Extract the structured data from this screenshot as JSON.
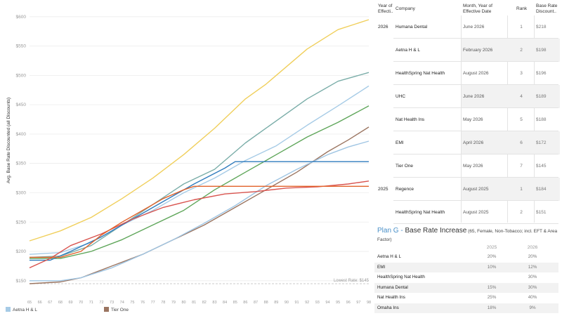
{
  "chart_data": {
    "type": "line",
    "ylabel": "Avg. Base Rate Discounted (all Discounts)",
    "x": [
      65,
      66,
      67,
      68,
      69,
      70,
      71,
      72,
      73,
      74,
      75,
      76,
      77,
      78,
      79,
      80,
      81,
      82,
      83,
      84,
      85,
      86,
      87,
      88,
      89,
      90,
      91,
      92,
      93,
      94,
      95,
      96,
      97,
      98
    ],
    "ylim": [
      140,
      610
    ],
    "yticks": [
      "$150",
      "$200",
      "$250",
      "$300",
      "$350",
      "$400",
      "$450",
      "$500",
      "$550",
      "$600"
    ],
    "ytick_values": [
      150,
      200,
      250,
      300,
      350,
      400,
      450,
      500,
      550,
      600
    ],
    "grid": true,
    "reference_line": {
      "value": 145,
      "label": "Lowest Rate: $145"
    },
    "series": [
      {
        "name": "Yellow",
        "color": "#f0cf5b",
        "points": [
          [
            65,
            218
          ],
          [
            68,
            235
          ],
          [
            71,
            258
          ],
          [
            74,
            290
          ],
          [
            77,
            325
          ],
          [
            80,
            365
          ],
          [
            83,
            410
          ],
          [
            86,
            460
          ],
          [
            88,
            485
          ],
          [
            92,
            545
          ],
          [
            95,
            578
          ],
          [
            98,
            595
          ]
        ]
      },
      {
        "name": "Teal",
        "color": "#7aada8",
        "points": [
          [
            65,
            190
          ],
          [
            68,
            192
          ],
          [
            71,
            210
          ],
          [
            74,
            245
          ],
          [
            77,
            280
          ],
          [
            80,
            315
          ],
          [
            83,
            340
          ],
          [
            86,
            385
          ],
          [
            88,
            410
          ],
          [
            92,
            460
          ],
          [
            95,
            490
          ],
          [
            98,
            505
          ]
        ]
      },
      {
        "name": "Light Blue",
        "color": "#a6cbe6",
        "points": [
          [
            65,
            195
          ],
          [
            68,
            198
          ],
          [
            71,
            215
          ],
          [
            74,
            245
          ],
          [
            77,
            270
          ],
          [
            80,
            300
          ],
          [
            83,
            325
          ],
          [
            86,
            355
          ],
          [
            89,
            380
          ],
          [
            92,
            415
          ],
          [
            95,
            448
          ],
          [
            98,
            482
          ]
        ]
      },
      {
        "name": "Green",
        "color": "#5fa65a",
        "points": [
          [
            65,
            188
          ],
          [
            68,
            188
          ],
          [
            71,
            200
          ],
          [
            74,
            220
          ],
          [
            77,
            245
          ],
          [
            80,
            270
          ],
          [
            83,
            305
          ],
          [
            86,
            335
          ],
          [
            89,
            365
          ],
          [
            92,
            395
          ],
          [
            95,
            420
          ],
          [
            98,
            448
          ]
        ]
      },
      {
        "name": "Tier One",
        "color": "#9b7561",
        "points": [
          [
            65,
            145
          ],
          [
            68,
            148
          ],
          [
            70,
            155
          ],
          [
            73,
            175
          ],
          [
            76,
            195
          ],
          [
            79,
            220
          ],
          [
            82,
            245
          ],
          [
            85,
            275
          ],
          [
            88,
            305
          ],
          [
            91,
            335
          ],
          [
            94,
            370
          ],
          [
            96,
            390
          ],
          [
            98,
            412
          ]
        ]
      },
      {
        "name": "Aetna H & L",
        "color": "#9fc5e3",
        "points": [
          [
            65,
            150
          ],
          [
            68,
            150
          ],
          [
            70,
            155
          ],
          [
            73,
            172
          ],
          [
            76,
            195
          ],
          [
            79,
            220
          ],
          [
            82,
            248
          ],
          [
            85,
            278
          ],
          [
            88,
            312
          ],
          [
            91,
            340
          ],
          [
            94,
            365
          ],
          [
            96,
            378
          ],
          [
            98,
            388
          ]
        ]
      },
      {
        "name": "Dark Blue",
        "color": "#2f7bbd",
        "points": [
          [
            65,
            185
          ],
          [
            67,
            185
          ],
          [
            69,
            200
          ],
          [
            72,
            225
          ],
          [
            75,
            255
          ],
          [
            78,
            285
          ],
          [
            81,
            315
          ],
          [
            84,
            342
          ],
          [
            85,
            353
          ],
          [
            98,
            353
          ]
        ]
      },
      {
        "name": "Red",
        "color": "#d9544f",
        "points": [
          [
            65,
            172
          ],
          [
            67,
            188
          ],
          [
            69,
            210
          ],
          [
            72,
            230
          ],
          [
            75,
            255
          ],
          [
            78,
            275
          ],
          [
            81,
            288
          ],
          [
            84,
            298
          ],
          [
            87,
            302
          ],
          [
            90,
            308
          ],
          [
            93,
            310
          ],
          [
            96,
            315
          ],
          [
            98,
            320
          ]
        ]
      },
      {
        "name": "Orange",
        "color": "#e2622a",
        "points": [
          [
            65,
            190
          ],
          [
            68,
            190
          ],
          [
            70,
            200
          ],
          [
            72,
            228
          ],
          [
            74,
            250
          ],
          [
            76,
            270
          ],
          [
            78,
            290
          ],
          [
            80,
            305
          ],
          [
            81,
            311
          ],
          [
            98,
            311
          ]
        ]
      }
    ]
  },
  "legend": [
    {
      "label": "Aetna H & L",
      "color": "#a6cbe6"
    },
    {
      "label": "Tier One",
      "color": "#9b7561"
    }
  ],
  "rank_table": {
    "headers": {
      "year": "Year of Effecti..",
      "company": "Company",
      "month": "Month, Year of Effective Date",
      "rank": "Rank",
      "rate": "Base Rate Discount.."
    },
    "rows": [
      {
        "year": "2026",
        "company": "Humana Dental",
        "month": "June 2026",
        "rank": "1",
        "rate": "$218"
      },
      {
        "year": "",
        "company": "Aetna H & L",
        "month": "February 2026",
        "rank": "2",
        "rate": "$198"
      },
      {
        "year": "",
        "company": "HealthSpring Nat Health",
        "month": "August 2026",
        "rank": "3",
        "rate": "$196"
      },
      {
        "year": "",
        "company": "UHC",
        "month": "June 2026",
        "rank": "4",
        "rate": "$189"
      },
      {
        "year": "",
        "company": "Nat Health Ins",
        "month": "May 2026",
        "rank": "5",
        "rate": "$188"
      },
      {
        "year": "",
        "company": "EMI",
        "month": "April 2026",
        "rank": "6",
        "rate": "$172"
      },
      {
        "year": "",
        "company": "Tier One",
        "month": "May 2026",
        "rank": "7",
        "rate": "$145"
      },
      {
        "year": "2025",
        "company": "Regence",
        "month": "August 2025",
        "rank": "1",
        "rate": "$184"
      },
      {
        "year": "",
        "company": "HealthSpring Nat Health",
        "month": "August 2025",
        "rank": "2",
        "rate": "$151"
      }
    ]
  },
  "increase": {
    "title_plan": "Plan G",
    "title_dash": " - ",
    "title_main": "Base Rate Increase",
    "title_note": " (65, Female, Non-Tobacco; incl. EFT & Area Factor)",
    "col_2025": "2025",
    "col_2026": "2026",
    "rows": [
      {
        "name": "Aetna H & L",
        "v2025": "20%",
        "v2026": "20%"
      },
      {
        "name": "EMI",
        "v2025": "10%",
        "v2026": "12%"
      },
      {
        "name": "HealthSpring Nat Health",
        "v2025": "",
        "v2026": "30%"
      },
      {
        "name": "Humana Dental",
        "v2025": "15%",
        "v2026": "30%"
      },
      {
        "name": "Nat Health Ins",
        "v2025": "25%",
        "v2026": "40%"
      },
      {
        "name": "Omaha Ins",
        "v2025": "18%",
        "v2026": "9%"
      }
    ]
  }
}
